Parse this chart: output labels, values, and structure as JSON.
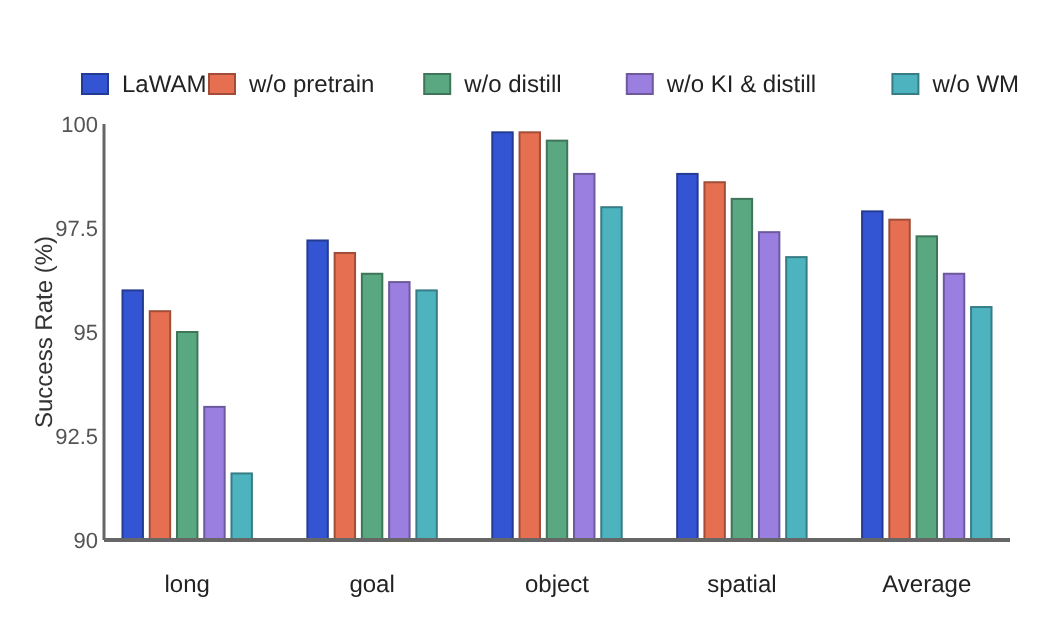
{
  "chart_data": {
    "type": "bar",
    "ylabel": "Success Rate (%)",
    "categories": [
      "long",
      "goal",
      "object",
      "spatial",
      "Average"
    ],
    "series": [
      {
        "name": "LaWAM",
        "color": "#3355d4",
        "values": [
          96.0,
          97.2,
          99.8,
          98.8,
          97.9
        ]
      },
      {
        "name": "w/o pretrain",
        "color": "#e66f52",
        "values": [
          95.5,
          96.9,
          99.8,
          98.6,
          97.7
        ]
      },
      {
        "name": "w/o distill",
        "color": "#5aa881",
        "values": [
          95.0,
          96.4,
          99.6,
          98.2,
          97.3
        ]
      },
      {
        "name": "w/o KI & distill",
        "color": "#9b7fe0",
        "values": [
          93.2,
          96.2,
          98.8,
          97.4,
          96.4
        ]
      },
      {
        "name": "w/o WM",
        "color": "#4db3bf",
        "values": [
          91.6,
          96.0,
          98.0,
          96.8,
          95.6
        ]
      }
    ],
    "ylim": [
      90,
      100
    ],
    "yticks": [
      90,
      92.5,
      95,
      97.5,
      100
    ],
    "legend": "top",
    "grid": false
  }
}
